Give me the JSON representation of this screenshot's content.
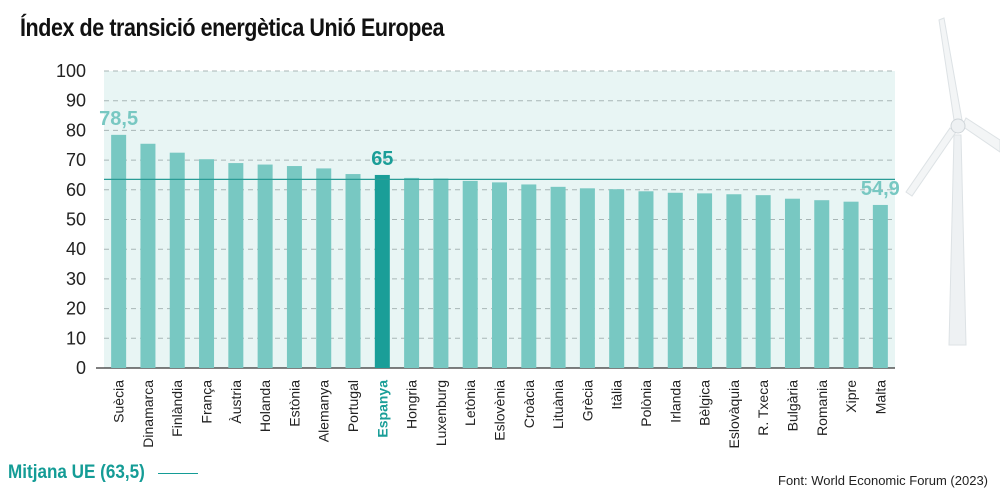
{
  "chart_data": {
    "type": "bar",
    "title": "Índex de transició energètica Unió Europea",
    "categories": [
      "Suècia",
      "Dinamarca",
      "Finlàndia",
      "França",
      "Àustria",
      "Holanda",
      "Estònia",
      "Alemanya",
      "Portugal",
      "Espanya",
      "Hongria",
      "Luxenburg",
      "Letònia",
      "Eslovènia",
      "Croàcia",
      "Lituània",
      "Grècia",
      "Itàlia",
      "Polònia",
      "Irlanda",
      "Bèlgica",
      "Eslovàquia",
      "R. Txeca",
      "Bulgària",
      "Romania",
      "Xipre",
      "Malta"
    ],
    "values": [
      78.5,
      75.5,
      72.5,
      70.3,
      69.0,
      68.5,
      68.0,
      67.2,
      65.3,
      65.0,
      64.0,
      63.8,
      63.0,
      62.5,
      61.8,
      61.0,
      60.5,
      60.2,
      59.5,
      59.0,
      58.8,
      58.5,
      58.2,
      57.0,
      56.5,
      56.0,
      54.9
    ],
    "ylim": [
      0,
      100
    ],
    "yticks": [
      0,
      10,
      20,
      30,
      40,
      50,
      60,
      70,
      80,
      90,
      100
    ],
    "grid": true,
    "highlight_category": "Espanya",
    "annotations": [
      {
        "category": "Suècia",
        "text": "78,5"
      },
      {
        "category": "Espanya",
        "text": "65"
      },
      {
        "category": "Malta",
        "text": "54,9"
      }
    ],
    "reference_line": {
      "value": 63.5,
      "label": "Mitjana UE (63,5)"
    },
    "source": "Font: World Economic Forum (2023)"
  },
  "colors": {
    "bar": "#78c8c2",
    "bar_highlight": "#1a9e98",
    "plot_background": "#e8f5f4",
    "reference_line": "#2a9c96",
    "label_highlight": "#1a9e98",
    "annotation_light": "#78c8c2",
    "title": "#111111"
  },
  "decorations": {
    "background_icon": "wind-turbine-icon"
  }
}
